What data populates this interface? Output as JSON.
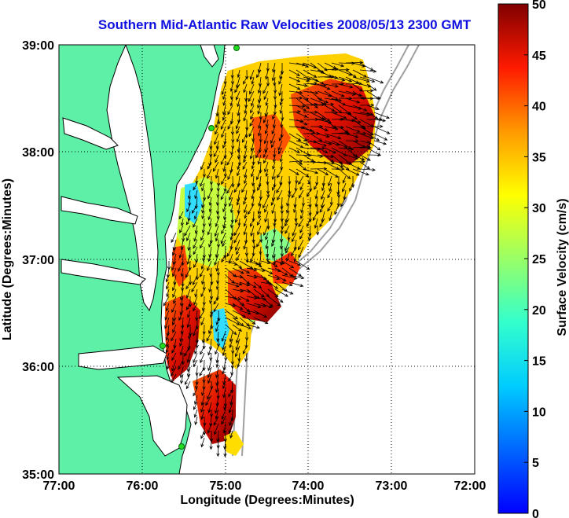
{
  "title": "Southern Mid-Atlantic Raw Velocities 2008/05/13 2300 GMT",
  "map": {
    "xlabel": "Longitude (Degrees:Minutes)",
    "ylabel": "Latitude (Degrees:Minutes)",
    "x_ticks": [
      "77:00",
      "76:00",
      "75:00",
      "74:00",
      "73:00",
      "72:00"
    ],
    "y_ticks": [
      "39:00",
      "38:00",
      "37:00",
      "36:00",
      "35:00"
    ],
    "lon_range": [
      -77,
      -72
    ],
    "lat_range": [
      35,
      39
    ],
    "colors": {
      "land": "#5ff0a8",
      "ocean": "#ffffff",
      "coast": "#000000",
      "bathymetry": "#a0a0a0",
      "station": "#22dd22",
      "grid": "#000000"
    }
  },
  "colorbar": {
    "label": "Surface Velocity (cm/s)",
    "ticks": [
      "0",
      "5",
      "10",
      "15",
      "20",
      "25",
      "30",
      "35",
      "40",
      "45",
      "50"
    ],
    "range": [
      0,
      50
    ]
  }
}
